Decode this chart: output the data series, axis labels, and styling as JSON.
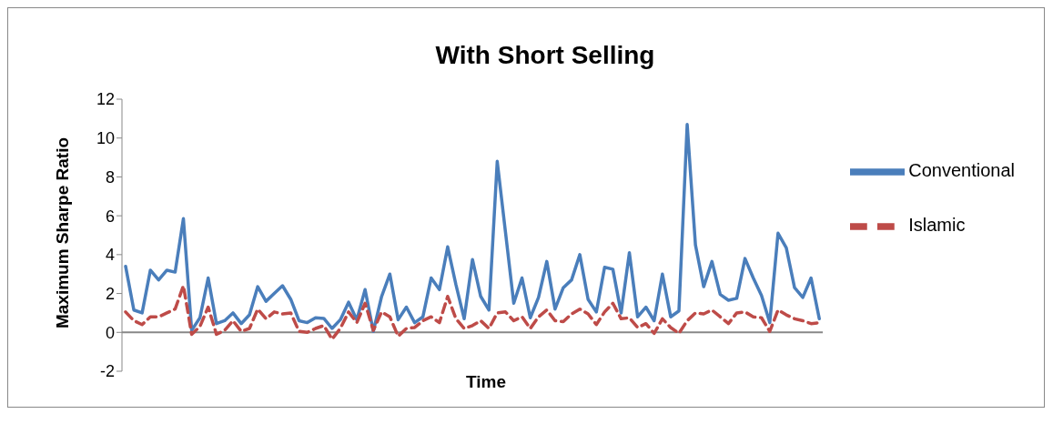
{
  "chart_data": {
    "type": "line",
    "title": "With Short Selling",
    "xlabel": "Time",
    "ylabel": "Maximum Sharpe Ratio",
    "categories": [
      null,
      null,
      null,
      null,
      null,
      null,
      null,
      null,
      null,
      null,
      null,
      null,
      null,
      null,
      null,
      null,
      null,
      null,
      null,
      null,
      null,
      null,
      null,
      null,
      null,
      null,
      null,
      null,
      null,
      null,
      null,
      null,
      null,
      null,
      null,
      null,
      null,
      null,
      null,
      null,
      null,
      null,
      null,
      null,
      null,
      null,
      null,
      null,
      null,
      null,
      null,
      null,
      null,
      null,
      null,
      null,
      null,
      null,
      null,
      null,
      null,
      null,
      null,
      null,
      null,
      null,
      null,
      null,
      null,
      null,
      null,
      null,
      null,
      null,
      null,
      null,
      null,
      null,
      null,
      null,
      null,
      null,
      null,
      null,
      null
    ],
    "series": [
      {
        "name": "Conventional",
        "color": "#4a7ebb",
        "line_style": "solid",
        "values": [
          3.4,
          1.15,
          1.0,
          3.2,
          2.7,
          3.2,
          3.1,
          5.85,
          0.1,
          0.75,
          2.8,
          0.45,
          0.6,
          1.0,
          0.45,
          0.9,
          2.35,
          1.6,
          2.0,
          2.4,
          1.7,
          0.6,
          0.5,
          0.75,
          0.72,
          0.2,
          0.65,
          1.55,
          0.65,
          2.2,
          0.05,
          1.85,
          3.0,
          0.65,
          1.3,
          0.5,
          0.8,
          2.8,
          2.2,
          4.4,
          2.45,
          0.7,
          3.75,
          1.85,
          1.15,
          8.8,
          5.15,
          1.5,
          2.8,
          0.75,
          1.8,
          3.65,
          1.2,
          2.3,
          2.7,
          4.0,
          1.7,
          1.05,
          3.35,
          3.25,
          1.0,
          4.1,
          0.8,
          1.3,
          0.6,
          3.0,
          0.8,
          1.1,
          10.7,
          4.5,
          2.35,
          3.65,
          1.95,
          1.65,
          1.75,
          3.8,
          2.8,
          1.9,
          0.5,
          5.1,
          4.35,
          2.3,
          1.8,
          2.8,
          0.7
        ]
      },
      {
        "name": "Islamic",
        "color": "#be4b48",
        "line_style": "dashed",
        "values": [
          1.05,
          0.6,
          0.4,
          0.8,
          0.8,
          1.0,
          1.2,
          2.4,
          -0.1,
          0.3,
          1.3,
          -0.1,
          0.1,
          0.6,
          0.05,
          0.2,
          1.2,
          0.7,
          1.05,
          0.95,
          1.0,
          0.05,
          0,
          0.2,
          0.35,
          -0.35,
          0.2,
          1.05,
          0.5,
          1.5,
          0.1,
          1.05,
          0.8,
          -0.2,
          0.2,
          0.25,
          0.6,
          0.8,
          0.5,
          1.85,
          0.7,
          0.2,
          0.35,
          0.6,
          0.2,
          1.0,
          1.05,
          0.6,
          0.8,
          0.2,
          0.8,
          1.15,
          0.6,
          0.55,
          0.95,
          1.2,
          0.95,
          0.4,
          1.05,
          1.5,
          0.7,
          0.75,
          0.25,
          0.45,
          -0.05,
          0.7,
          0.25,
          -0.05,
          0.6,
          1.0,
          0.95,
          1.15,
          0.8,
          0.45,
          1.0,
          1.05,
          0.8,
          0.75,
          0.05,
          1.15,
          0.9,
          0.7,
          0.6,
          0.45,
          0.5
        ]
      }
    ],
    "ylim": [
      -2,
      12
    ],
    "yticks": [
      -2,
      0,
      2,
      4,
      6,
      8,
      10,
      12
    ],
    "grid": false,
    "ref_lines": [
      {
        "axis": "y",
        "value": 0,
        "color": "#888888"
      }
    ],
    "legend": "right",
    "marker": "none"
  }
}
